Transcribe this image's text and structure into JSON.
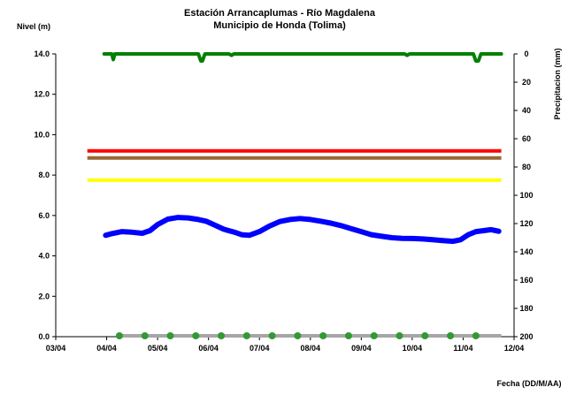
{
  "chart_data": {
    "type": "line",
    "title": "Estación Arrancaplumas - Río Magdalena",
    "subtitle": "Municipio de Honda (Tolima)",
    "ylabel": "Nivel (m)",
    "y2label": "Precipitacion (mm)",
    "xlabel": "Fecha (DD/M/AA)",
    "xlim": [
      0,
      9
    ],
    "ylim": [
      0,
      14
    ],
    "y2lim": [
      0,
      200
    ],
    "y2_inverted": true,
    "x_ticks": [
      "03/04",
      "04/04",
      "05/04",
      "06/04",
      "07/04",
      "08/04",
      "09/04",
      "10/04",
      "11/04",
      "12/04"
    ],
    "y_ticks": [
      "0.0",
      "2.0",
      "4.0",
      "6.0",
      "8.0",
      "10.0",
      "12.0",
      "14.0"
    ],
    "y2_ticks": [
      "0",
      "20",
      "40",
      "60",
      "80",
      "100",
      "120",
      "140",
      "160",
      "180",
      "200"
    ],
    "grid": false,
    "legend": "none",
    "thresholds": [
      {
        "color": "#ff0000",
        "value": 9.2,
        "x_range": [
          0.62,
          8.75
        ]
      },
      {
        "color": "#996633",
        "value": 8.85,
        "x_range": [
          0.62,
          8.75
        ]
      },
      {
        "color": "#ffff00",
        "value": 7.75,
        "x_range": [
          0.62,
          8.75
        ]
      }
    ],
    "series": [
      {
        "color": "#0000ff",
        "axis": "left",
        "x": [
          0.98,
          1.1,
          1.3,
          1.5,
          1.7,
          1.85,
          2.0,
          2.2,
          2.4,
          2.6,
          2.8,
          2.95,
          3.1,
          3.3,
          3.5,
          3.65,
          3.8,
          4.0,
          4.2,
          4.4,
          4.6,
          4.8,
          5.0,
          5.2,
          5.4,
          5.6,
          5.8,
          6.0,
          6.2,
          6.4,
          6.6,
          6.8,
          7.0,
          7.2,
          7.4,
          7.6,
          7.8,
          7.95,
          8.1,
          8.25,
          8.4,
          8.55,
          8.7
        ],
        "y": [
          5.02,
          5.1,
          5.2,
          5.17,
          5.12,
          5.25,
          5.55,
          5.82,
          5.9,
          5.88,
          5.8,
          5.72,
          5.55,
          5.32,
          5.18,
          5.05,
          5.02,
          5.2,
          5.48,
          5.7,
          5.8,
          5.85,
          5.8,
          5.72,
          5.62,
          5.5,
          5.35,
          5.2,
          5.05,
          4.97,
          4.9,
          4.87,
          4.86,
          4.84,
          4.8,
          4.76,
          4.72,
          4.8,
          5.05,
          5.2,
          5.25,
          5.3,
          5.22
        ]
      },
      {
        "color": "#008000",
        "axis": "right",
        "x": [
          0.95,
          1.1,
          1.13,
          1.16,
          1.3,
          2.8,
          2.85,
          2.88,
          2.93,
          3.2,
          3.4,
          3.45,
          3.5,
          6.85,
          6.9,
          6.95,
          8.2,
          8.25,
          8.3,
          8.35,
          8.45,
          8.5,
          8.75
        ],
        "y": [
          0,
          0,
          4,
          0,
          0,
          0,
          5,
          5,
          0,
          0,
          0,
          1,
          0,
          0,
          1,
          0,
          0,
          5,
          5,
          0,
          0,
          0,
          0
        ]
      }
    ],
    "zero_markers": {
      "color": "#339933",
      "line_color": "#a6a6a6",
      "x": [
        1.25,
        1.75,
        2.25,
        2.75,
        3.25,
        3.75,
        4.25,
        4.75,
        5.25,
        5.75,
        6.25,
        6.75,
        7.25,
        7.75,
        8.25
      ]
    }
  }
}
